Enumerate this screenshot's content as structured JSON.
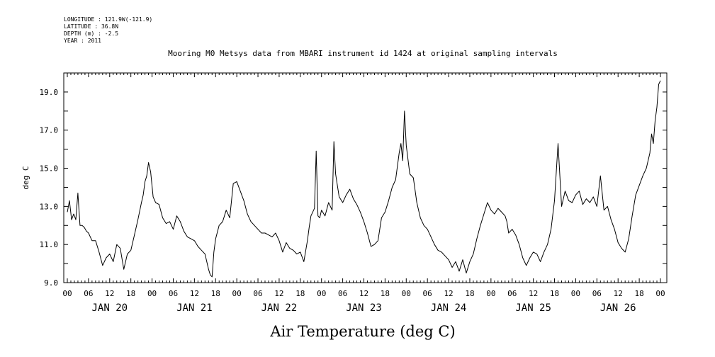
{
  "header": {
    "longitude": "LONGITUDE : 121.9W(-121.9)",
    "latitude": "LATITUDE : 36.8N",
    "depth": "DEPTH (m) : -2.5",
    "year": "YEAR : 2011"
  },
  "chart_data": {
    "type": "line",
    "title": "Mooring M0 Metsys data from MBARI instrument id 1424 at original sampling intervals",
    "xlabel": "Air Temperature (deg C)",
    "ylabel": "deg C",
    "ylim": [
      9.0,
      20.0
    ],
    "yticks": [
      9.0,
      11.0,
      13.0,
      15.0,
      17.0,
      19.0
    ],
    "xlim_hours": [
      0,
      168
    ],
    "hour_tick_labels": [
      "00",
      "06",
      "12",
      "18",
      "00",
      "06",
      "12",
      "18",
      "00",
      "06",
      "12",
      "18",
      "00",
      "06",
      "12",
      "18",
      "00",
      "06",
      "12",
      "18",
      "00",
      "06",
      "12",
      "18",
      "00",
      "06",
      "12",
      "18",
      "00"
    ],
    "day_labels": [
      "JAN 20",
      "JAN 21",
      "JAN 22",
      "JAN 23",
      "JAN 24",
      "JAN 25",
      "JAN 26"
    ],
    "grid": false,
    "series": [
      {
        "x_hours": [
          0,
          0.6,
          1.2,
          1.8,
          2.4,
          3,
          3.6,
          4.2,
          4.8,
          5.4,
          6,
          7,
          8,
          9,
          10,
          11,
          12,
          13,
          14,
          15,
          16,
          17,
          18,
          19,
          20,
          21,
          21.5,
          22,
          22.5,
          23,
          23.6,
          24.3,
          25,
          26,
          27,
          28,
          29,
          30,
          31,
          32,
          33,
          34,
          35,
          36,
          37,
          38,
          39,
          40,
          40.5,
          41,
          41.5,
          42,
          43,
          44,
          45,
          46,
          47,
          48,
          49,
          50,
          51,
          52,
          53,
          54,
          55,
          56,
          57,
          58,
          59,
          60,
          61,
          62,
          63,
          64,
          65,
          66,
          67,
          68,
          68.5,
          69,
          70,
          70.5,
          71,
          71.5,
          72,
          73,
          74,
          75,
          75.5,
          76,
          77,
          78,
          79,
          80,
          81,
          82,
          83,
          84,
          85,
          86,
          87,
          88,
          89,
          90,
          91,
          92,
          93,
          94,
          94.5,
          95,
          95.5,
          96,
          97,
          98,
          99,
          100,
          101,
          102,
          103,
          104,
          105,
          106,
          107,
          108,
          109,
          110,
          111,
          112,
          113,
          114,
          115,
          116,
          117,
          118,
          119,
          120,
          121,
          122,
          123,
          124,
          124.5,
          125,
          126,
          127,
          128,
          129,
          130,
          131,
          132,
          133,
          134,
          135,
          136,
          137,
          138,
          139,
          140,
          141,
          142,
          143,
          144,
          145,
          146,
          147,
          148,
          149,
          150,
          151,
          152,
          153,
          154,
          155,
          156,
          157,
          158,
          159,
          160,
          161,
          162,
          163,
          164,
          165,
          165.5,
          166,
          166.5,
          167,
          167.5,
          168
        ],
        "values": [
          12.7,
          13.3,
          12.3,
          12.6,
          12.3,
          13.7,
          12.0,
          12.0,
          11.9,
          11.7,
          11.6,
          11.2,
          11.2,
          10.6,
          9.9,
          10.3,
          10.5,
          10.1,
          11.0,
          10.8,
          9.7,
          10.5,
          10.7,
          11.5,
          12.3,
          13.2,
          13.6,
          14.3,
          14.6,
          15.3,
          14.8,
          13.5,
          13.2,
          13.1,
          12.4,
          12.1,
          12.2,
          11.8,
          12.5,
          12.2,
          11.7,
          11.4,
          11.3,
          11.2,
          10.9,
          10.7,
          10.5,
          9.7,
          9.4,
          9.3,
          10.6,
          11.3,
          12.0,
          12.2,
          12.8,
          12.4,
          14.2,
          14.3,
          13.8,
          13.3,
          12.6,
          12.2,
          12.0,
          11.8,
          11.6,
          11.6,
          11.5,
          11.4,
          11.6,
          11.2,
          10.6,
          11.1,
          10.8,
          10.7,
          10.5,
          10.6,
          10.1,
          11.2,
          11.9,
          12.5,
          12.9,
          15.9,
          12.5,
          12.4,
          12.8,
          12.5,
          13.2,
          12.8,
          16.4,
          14.7,
          13.5,
          13.2,
          13.6,
          13.9,
          13.4,
          13.1,
          12.7,
          12.2,
          11.6,
          10.9,
          11.0,
          11.2,
          12.4,
          12.7,
          13.3,
          14.0,
          14.4,
          15.8,
          16.3,
          15.4,
          18.0,
          16.2,
          14.7,
          14.5,
          13.2,
          12.4,
          12.0,
          11.8,
          11.4,
          11.0,
          10.7,
          10.6,
          10.4,
          10.2,
          9.8,
          10.1,
          9.6,
          10.2,
          9.5,
          10.1,
          10.5,
          11.3,
          12.0,
          12.6,
          13.2,
          12.8,
          12.6,
          12.9,
          12.7,
          12.5,
          12.2,
          11.6,
          11.8,
          11.5,
          11.0,
          10.3,
          9.9,
          10.3,
          10.6,
          10.5,
          10.1,
          10.6,
          11.0,
          11.8,
          13.3,
          16.3,
          13.0,
          13.8,
          13.3,
          13.2,
          13.6,
          13.8,
          13.1,
          13.4,
          13.2,
          13.5,
          13.0,
          14.6,
          12.8,
          13.0,
          12.3,
          11.8,
          11.1,
          10.8,
          10.6,
          11.3,
          12.5,
          13.6,
          14.1,
          14.6,
          15.0,
          15.8,
          16.8,
          16.3,
          17.5,
          18.2,
          19.4,
          19.6
        ]
      }
    ]
  }
}
